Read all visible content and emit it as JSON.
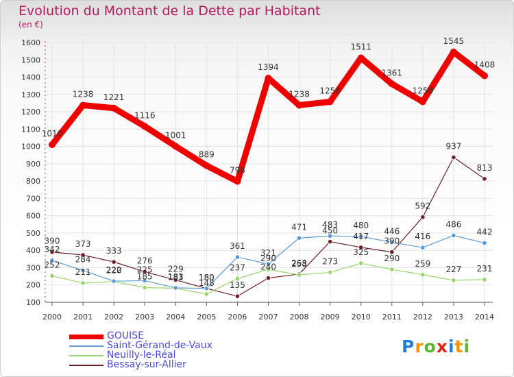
{
  "title": "Evolution du Montant de la Dette par Habitant",
  "subtitle": "(en €)",
  "logo": {
    "letters": [
      {
        "ch": "P",
        "color": "#1e7fd0"
      },
      {
        "ch": "r",
        "color": "#f29400"
      },
      {
        "ch": "o",
        "color": "#5bb531"
      },
      {
        "ch": "x",
        "color": "#e2241a"
      },
      {
        "ch": "i",
        "color": "#1e7fd0"
      },
      {
        "ch": "t",
        "color": "#f29400"
      },
      {
        "ch": "i",
        "color": "#5bb531"
      }
    ]
  },
  "chart_data": {
    "type": "line",
    "title": "Evolution du Montant de la Dette par Habitant",
    "subtitle": "(en €)",
    "xlabel": "",
    "ylabel": "",
    "x": [
      2000,
      2001,
      2002,
      2003,
      2004,
      2005,
      2006,
      2007,
      2008,
      2009,
      2010,
      2011,
      2012,
      2013,
      2014
    ],
    "ylim": [
      100,
      1600
    ],
    "yticks": [
      100,
      200,
      300,
      400,
      500,
      600,
      700,
      800,
      900,
      1000,
      1100,
      1200,
      1300,
      1400,
      1500,
      1600
    ],
    "grid": true,
    "legend_position": "bottom-left",
    "series": [
      {
        "name": "GOUISE",
        "color": "#ee0000",
        "values": [
          1010,
          1238,
          1221,
          1116,
          1001,
          889,
          798,
          1394,
          1238,
          1258,
          1511,
          1361,
          1258,
          1545,
          1408
        ],
        "labels": [
          "1010",
          "1238",
          "1221",
          "1116",
          "1001",
          "889",
          "798",
          "1394",
          "1238",
          "1258",
          "1511",
          "1361",
          "1258",
          "1545",
          "1408"
        ]
      },
      {
        "name": "Saint-Gérand-de-Vaux",
        "color": "#5a9ad5",
        "values": [
          342,
          284,
          222,
          225,
          183,
          180,
          361,
          321,
          471,
          483,
          480,
          446,
          416,
          486,
          442
        ],
        "labels": [
          "342",
          "284",
          "222",
          "225",
          "183",
          "180",
          "361",
          "321",
          "471",
          "483",
          "480",
          "446",
          "416",
          "486",
          "442"
        ]
      },
      {
        "name": "Neuilly-le-Réal",
        "color": "#99d36a",
        "values": [
          252,
          211,
          220,
          185,
          181,
          148,
          237,
          290,
          258,
          273,
          325,
          290,
          259,
          227,
          231
        ],
        "labels": [
          "252",
          "211",
          "220",
          "185",
          "181",
          "148",
          "237",
          "290",
          "258",
          "273",
          "325",
          "290",
          "259",
          "227",
          "231"
        ]
      },
      {
        "name": "Bessay-sur-Allier",
        "color": "#6b1f25",
        "values": [
          390,
          373,
          333,
          276,
          229,
          180,
          135,
          240,
          263,
          450,
          417,
          390,
          592,
          937,
          813
        ],
        "labels": [
          "390",
          "373",
          "333",
          "276",
          "229",
          "180",
          "135",
          "240",
          "263",
          "450",
          "417",
          "390",
          "592",
          "937",
          "813"
        ]
      }
    ]
  }
}
